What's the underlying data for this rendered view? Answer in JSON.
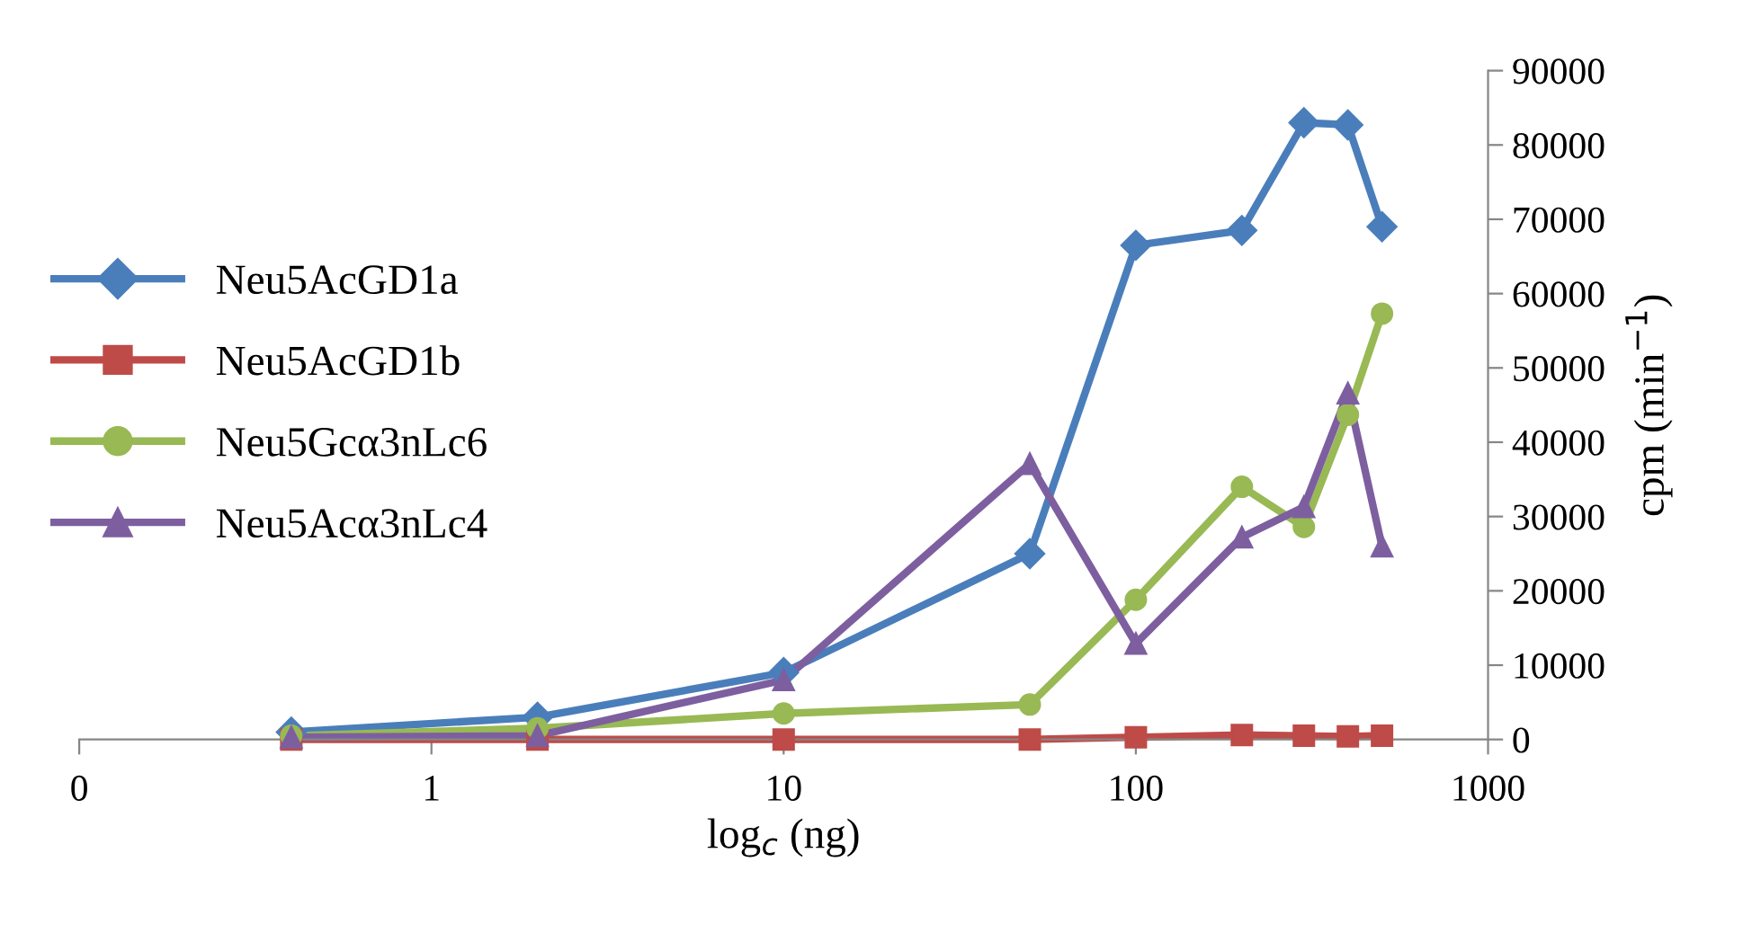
{
  "chart_data": {
    "type": "line",
    "xlabel": "log$_{c}$ (ng)",
    "ylabel": "cpm (min$^{−1}$)",
    "log": "x",
    "x": [
      0.4,
      2,
      10,
      50,
      100,
      200,
      300,
      400,
      500
    ],
    "xlim": [
      0.1,
      1000
    ],
    "xticks": [
      {
        "value": 0.1,
        "label": "0"
      },
      1,
      10,
      100,
      1000
    ],
    "ylim": [
      0,
      90000
    ],
    "yticks": [
      0,
      10000,
      20000,
      30000,
      40000,
      50000,
      60000,
      70000,
      80000,
      90000
    ],
    "legend": "left",
    "grid": false,
    "series": [
      {
        "name": "Neu5AcGD1a",
        "color": "#4a7ebb",
        "marker": "diamond",
        "values": [
          1000,
          3000,
          9000,
          25000,
          66500,
          68500,
          83000,
          82700,
          69000
        ]
      },
      {
        "name": "Neu5AcGD1b",
        "color": "#be4b48",
        "marker": "square",
        "values": [
          0,
          0,
          0,
          0,
          300,
          600,
          500,
          400,
          500
        ]
      },
      {
        "name": "Neu5Gcα3nLc6",
        "color": "#98b954",
        "marker": "circle",
        "values": [
          500,
          1500,
          3500,
          4700,
          18800,
          34000,
          28600,
          43700,
          57300
        ]
      },
      {
        "name": "Neu5Acα3nLc4",
        "color": "#7d5fa0",
        "marker": "triangle",
        "values": [
          300,
          500,
          8000,
          37100,
          12900,
          27200,
          31300,
          46600,
          26000
        ]
      }
    ]
  }
}
